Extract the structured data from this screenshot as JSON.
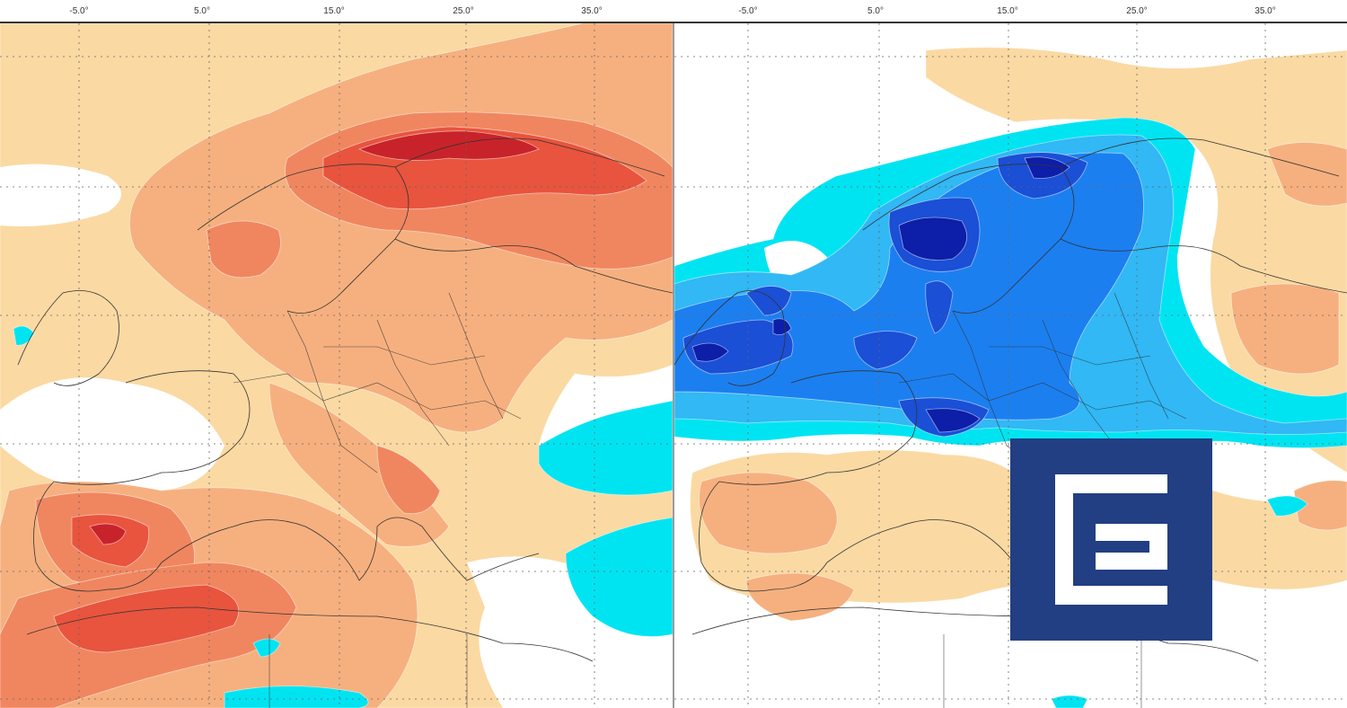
{
  "axis": {
    "left_ticks": [
      "-5.0°",
      "5.0°",
      "15.0°",
      "25.0°",
      "35.0°"
    ],
    "right_ticks": [
      "-5.0°",
      "5.0°",
      "15.0°",
      "25.0°",
      "35.0°"
    ]
  },
  "maps": {
    "left": {
      "anomaly": "warm"
    },
    "right": {
      "anomaly": "cold"
    }
  },
  "colors": {
    "warm_1": "#fbd9a3",
    "warm_2": "#f6b07f",
    "warm_3": "#f0865f",
    "warm_4": "#e8543e",
    "warm_5": "#c8232a",
    "cold_1": "#00e4f2",
    "cold_2": "#31b8f5",
    "cold_3": "#1c7ff0",
    "cold_4": "#1a4fd6",
    "cold_5": "#0d1ea8",
    "logo_bg": "#223f84",
    "logo_fg": "#ffffff"
  },
  "logo": {
    "icon": "cez-logo-icon"
  }
}
